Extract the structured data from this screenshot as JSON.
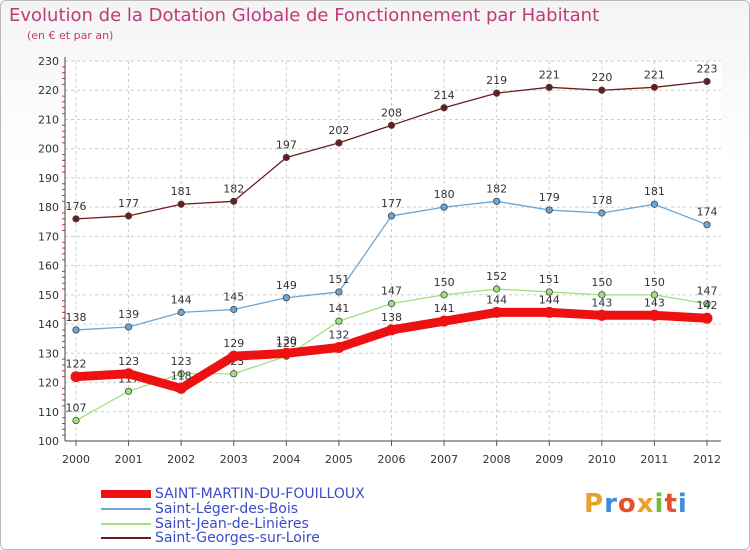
{
  "title": "Evolution de la Dotation Globale de Fonctionnement par Habitant",
  "subtitle": "(en € et par an)",
  "logo": "Proxiti",
  "chart_data": {
    "type": "line",
    "title": "Evolution de la Dotation Globale de Fonctionnement par Habitant",
    "subtitle": "(en € et par an)",
    "xlabel": "",
    "ylabel": "",
    "ylim": [
      100,
      230
    ],
    "yticks": [
      100,
      110,
      120,
      130,
      140,
      150,
      160,
      170,
      180,
      190,
      200,
      210,
      220,
      230
    ],
    "grid": true,
    "legend_position": "bottom-left",
    "x": [
      "2000",
      "2001",
      "2002",
      "2003",
      "2004",
      "2005",
      "2006",
      "2007",
      "2008",
      "2009",
      "2010",
      "2011",
      "2012"
    ],
    "series": [
      {
        "name": "Saint-Georges-sur-Loire",
        "color": "#6b1d1d",
        "values": [
          176,
          177,
          181,
          182,
          197,
          202,
          208,
          214,
          219,
          221,
          220,
          221,
          223
        ]
      },
      {
        "name": "Saint-Léger-des-Bois",
        "color": "#6aa6d6",
        "values": [
          138,
          139,
          144,
          145,
          149,
          151,
          177,
          180,
          182,
          179,
          178,
          181,
          174
        ]
      },
      {
        "name": "Saint-Jean-de-Linières",
        "color": "#9ee27a",
        "values": [
          107,
          117,
          123,
          123,
          129,
          141,
          147,
          150,
          152,
          151,
          150,
          150,
          147
        ]
      },
      {
        "name": "SAINT-MARTIN-DU-FOUILLOUX",
        "color": "#ee1111",
        "values": [
          122,
          123,
          118,
          129,
          130,
          132,
          138,
          141,
          144,
          144,
          143,
          143,
          142
        ]
      }
    ]
  },
  "legend": [
    {
      "label": "SAINT-MARTIN-DU-FOUILLOUX",
      "color": "#ee1111"
    },
    {
      "label": "Saint-Léger-des-Bois",
      "color": "#6aa6d6"
    },
    {
      "label": "Saint-Jean-de-Linières",
      "color": "#9ee27a"
    },
    {
      "label": "Saint-Georges-sur-Loire",
      "color": "#6b1d1d"
    }
  ]
}
